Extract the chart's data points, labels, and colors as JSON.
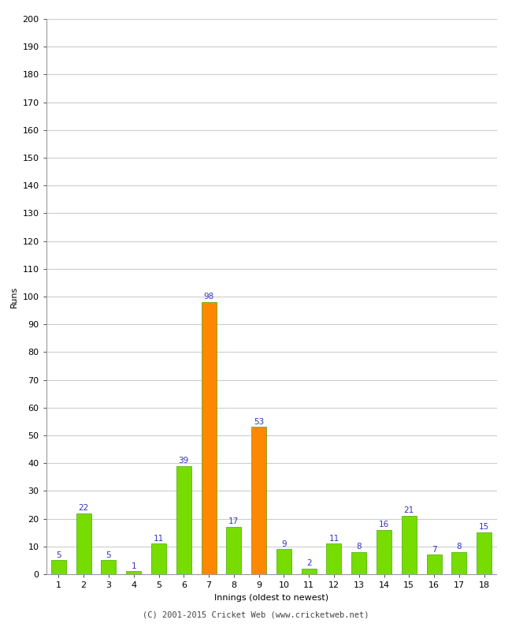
{
  "innings": [
    1,
    2,
    3,
    4,
    5,
    6,
    7,
    8,
    9,
    10,
    11,
    12,
    13,
    14,
    15,
    16,
    17,
    18
  ],
  "runs": [
    5,
    22,
    5,
    1,
    11,
    39,
    98,
    17,
    53,
    9,
    2,
    11,
    8,
    16,
    21,
    7,
    8,
    15
  ],
  "colors": [
    "#77dd00",
    "#77dd00",
    "#77dd00",
    "#77dd00",
    "#77dd00",
    "#77dd00",
    "#ff8800",
    "#77dd00",
    "#ff8800",
    "#77dd00",
    "#77dd00",
    "#77dd00",
    "#77dd00",
    "#77dd00",
    "#77dd00",
    "#77dd00",
    "#77dd00",
    "#77dd00"
  ],
  "xlabel": "Innings (oldest to newest)",
  "ylabel": "Runs",
  "ylim": [
    0,
    200
  ],
  "yticks": [
    0,
    10,
    20,
    30,
    40,
    50,
    60,
    70,
    80,
    90,
    100,
    110,
    120,
    130,
    140,
    150,
    160,
    170,
    180,
    190,
    200
  ],
  "caption": "(C) 2001-2015 Cricket Web (www.cricketweb.net)",
  "label_color": "#3333bb",
  "bar_edge_color": "#44aa00",
  "background_color": "#ffffff",
  "grid_color": "#cccccc",
  "label_fontsize": 7.5,
  "axis_label_fontsize": 8,
  "tick_fontsize": 8,
  "caption_fontsize": 7.5,
  "bar_width": 0.6
}
